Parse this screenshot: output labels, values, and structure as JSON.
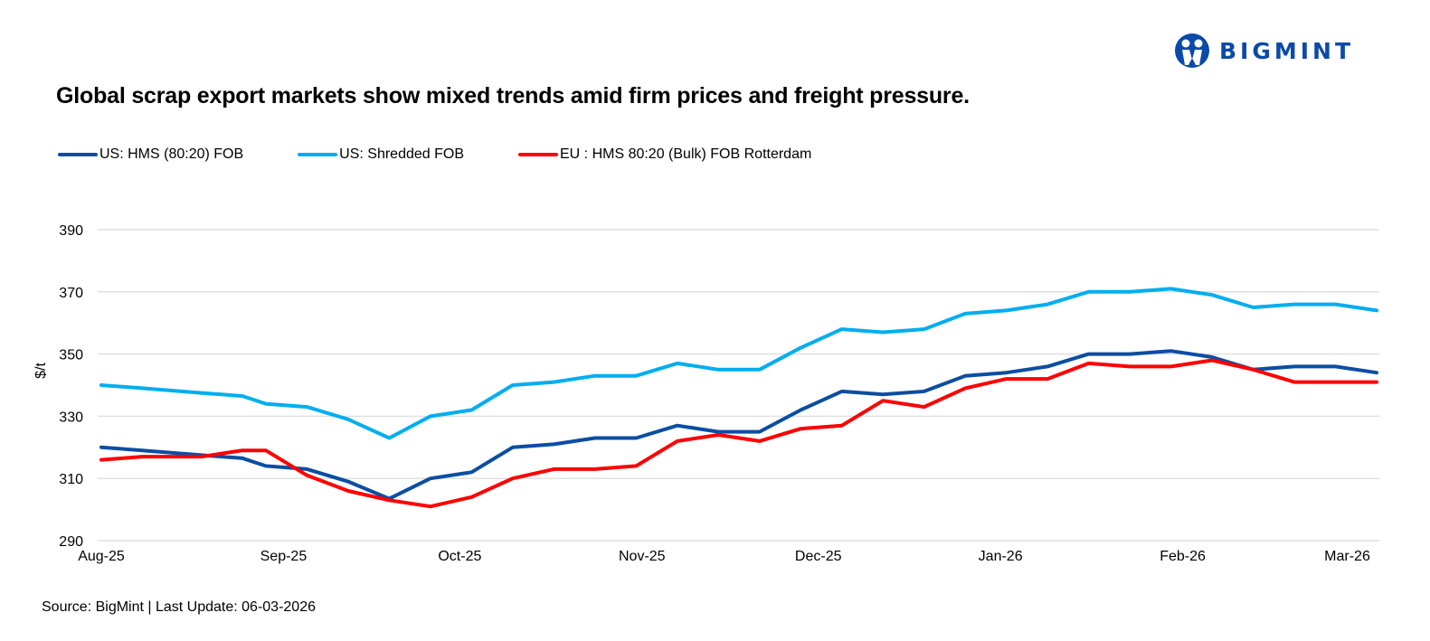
{
  "brand": {
    "name": "BIGMINT",
    "color": "#0a4aa8"
  },
  "title": "Global scrap export markets show mixed trends amid firm prices and freight pressure.",
  "source": "Source: BigMint | Last Update: 06-03-2026",
  "chart_data": {
    "type": "line",
    "title": "Global scrap export markets show mixed trends amid firm prices and freight pressure.",
    "ylabel": "$/t",
    "xlabel": "",
    "ylim": [
      290,
      390
    ],
    "yticks": [
      290,
      310,
      330,
      350,
      370,
      390
    ],
    "xlim": [
      "2025-08-01",
      "2026-03-06"
    ],
    "xticks": [
      {
        "date": "2025-08-01",
        "label": "Aug-25"
      },
      {
        "date": "2025-09-01",
        "label": "Sep-25"
      },
      {
        "date": "2025-10-01",
        "label": "Oct-25"
      },
      {
        "date": "2025-11-01",
        "label": "Nov-25"
      },
      {
        "date": "2025-12-01",
        "label": "Dec-25"
      },
      {
        "date": "2026-01-01",
        "label": "Jan-26"
      },
      {
        "date": "2026-02-01",
        "label": "Feb-26"
      },
      {
        "date": "2026-03-01",
        "label": "Mar-26"
      }
    ],
    "grid": "horizontal",
    "legend": "top-left",
    "x": [
      "2025-08-01",
      "2025-08-08",
      "2025-08-18",
      "2025-08-25",
      "2025-08-29",
      "2025-09-05",
      "2025-09-12",
      "2025-09-19",
      "2025-09-26",
      "2025-10-03",
      "2025-10-10",
      "2025-10-17",
      "2025-10-24",
      "2025-10-31",
      "2025-11-07",
      "2025-11-14",
      "2025-11-21",
      "2025-11-28",
      "2025-12-05",
      "2025-12-12",
      "2025-12-19",
      "2025-12-26",
      "2026-01-02",
      "2026-01-09",
      "2026-01-16",
      "2026-01-23",
      "2026-01-30",
      "2026-02-06",
      "2026-02-13",
      "2026-02-20",
      "2026-02-27",
      "2026-03-06"
    ],
    "series": [
      {
        "name": "US: HMS (80:20) FOB",
        "color": "#0b4ea2",
        "values": [
          320,
          319,
          317.5,
          316.5,
          314,
          313,
          309,
          303.5,
          310,
          312,
          320,
          321,
          323,
          323,
          327,
          325,
          325,
          332,
          338,
          337,
          338,
          343,
          344,
          346,
          350,
          350,
          351,
          349,
          345,
          346,
          346,
          344
        ]
      },
      {
        "name": "US: Shredded FOB",
        "color": "#00aeef",
        "values": [
          340,
          339,
          337.5,
          336.5,
          334,
          333,
          329,
          323,
          330,
          332,
          340,
          341,
          343,
          343,
          347,
          345,
          345,
          352,
          358,
          357,
          358,
          363,
          364,
          366,
          370,
          370,
          371,
          369,
          365,
          366,
          366,
          364
        ]
      },
      {
        "name": "EU : HMS 80:20 (Bulk) FOB Rotterdam",
        "color": "#ff0000",
        "values": [
          316,
          317,
          317,
          319,
          319,
          311,
          306,
          303,
          301,
          304,
          310,
          313,
          313,
          314,
          322,
          324,
          322,
          326,
          327,
          335,
          333,
          339,
          342,
          342,
          347,
          346,
          346,
          348,
          345,
          341,
          341,
          341
        ]
      }
    ]
  }
}
